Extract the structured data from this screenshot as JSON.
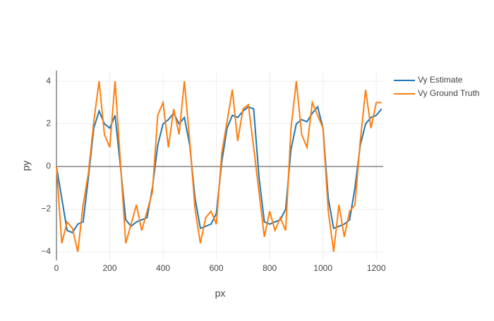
{
  "chart_data": {
    "type": "line",
    "xlabel": "px",
    "ylabel": "py",
    "x": [
      0,
      20,
      40,
      60,
      80,
      100,
      120,
      140,
      160,
      180,
      200,
      220,
      240,
      260,
      280,
      300,
      320,
      340,
      360,
      380,
      400,
      420,
      440,
      460,
      480,
      500,
      520,
      540,
      560,
      580,
      600,
      620,
      640,
      660,
      680,
      700,
      720,
      740,
      760,
      780,
      800,
      820,
      840,
      860,
      880,
      900,
      920,
      940,
      960,
      980,
      1000,
      1020,
      1040,
      1060,
      1080,
      1100,
      1120,
      1140,
      1160,
      1180,
      1200,
      1220
    ],
    "series": [
      {
        "name": "Vy Estimate",
        "color": "#1f77b4",
        "values": [
          0,
          -1.5,
          -3,
          -3.1,
          -2.7,
          -2.6,
          -0.5,
          1.8,
          2.6,
          2.0,
          1.8,
          2.4,
          0,
          -2.5,
          -2.8,
          -2.6,
          -2.5,
          -2.4,
          -1,
          1.0,
          2.0,
          2.2,
          2.5,
          2.0,
          2.3,
          1.0,
          -1.5,
          -2.9,
          -2.8,
          -2.7,
          -2.2,
          0.2,
          1.8,
          2.4,
          2.3,
          2.6,
          2.8,
          2.7,
          -0.5,
          -2.6,
          -2.7,
          -2.6,
          -2.5,
          -2.0,
          0.8,
          2.0,
          2.2,
          2.1,
          2.5,
          2.8,
          1.8,
          -1.5,
          -2.9,
          -2.8,
          -2.7,
          -2.5,
          -1.0,
          1.0,
          2.0,
          2.3,
          2.4,
          2.7
        ]
      },
      {
        "name": "Vy Ground Truth",
        "color": "#ff7f0e",
        "values": [
          0,
          -3.6,
          -2.6,
          -2.9,
          -4,
          -1.8,
          -0.3,
          2.1,
          4.0,
          1.5,
          0.9,
          4.0,
          0.2,
          -3.6,
          -2.7,
          -1.8,
          -3.0,
          -2.1,
          -1.2,
          2.4,
          3.0,
          0.9,
          2.7,
          1.5,
          4.0,
          1.2,
          -2.0,
          -3.6,
          -2.4,
          -2.1,
          -2.7,
          0.6,
          2.1,
          3.6,
          1.2,
          2.7,
          2.9,
          0.9,
          -1.2,
          -3.3,
          -2.1,
          -3.0,
          -2.4,
          -3.0,
          1.8,
          4.0,
          1.5,
          0.9,
          3.0,
          2.4,
          1.8,
          -2.1,
          -4.0,
          -1.8,
          -3.3,
          -2.1,
          -1.8,
          1.2,
          3.6,
          1.8,
          3.0,
          3.0
        ]
      }
    ],
    "xlim": [
      0,
      1226
    ],
    "ylim": [
      -4.4,
      4.5
    ],
    "xticks": [
      0,
      200,
      400,
      600,
      800,
      1000,
      1200
    ],
    "yticks": [
      {
        "value": -4,
        "label": "−4"
      },
      {
        "value": -2,
        "label": "−2"
      },
      0,
      2,
      4
    ],
    "grid": true,
    "legend": "top-right"
  }
}
